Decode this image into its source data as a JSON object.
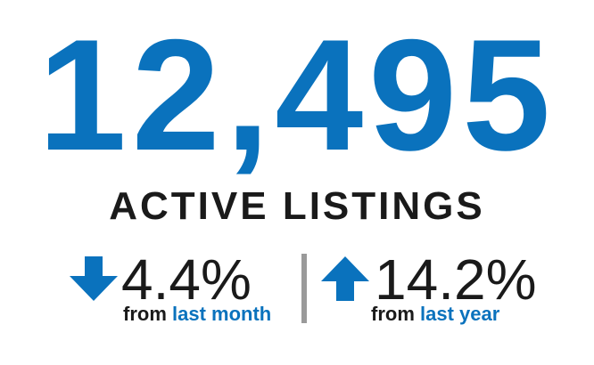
{
  "headline": {
    "value": "12,495",
    "label": "ACTIVE LISTINGS"
  },
  "stats": [
    {
      "direction": "down",
      "icon": "arrow-down-icon",
      "value": "4.4%",
      "caption_prefix": "from",
      "caption_period": "last month"
    },
    {
      "direction": "up",
      "icon": "arrow-up-icon",
      "value": "14.2%",
      "caption_prefix": "from",
      "caption_period": "last year"
    }
  ],
  "colors": {
    "accent": "#0a72bd",
    "text": "#1a1a1a",
    "divider": "#9a9a9a",
    "background": "#ffffff"
  }
}
